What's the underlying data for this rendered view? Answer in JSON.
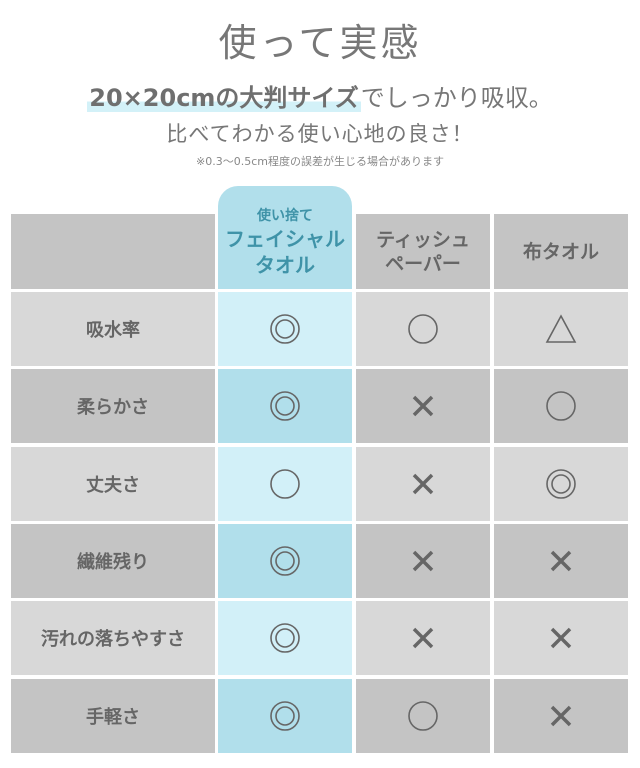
{
  "heading": {
    "title": "使って実感",
    "subtitle_highlight": "20×20cmの大判サイズ",
    "subtitle_rest": "でしっかり吸収。",
    "tagline": "比べてわかる使い心地の良さ！",
    "note": "※0.3〜0.5cm程度の誤差が生じる場合があります"
  },
  "colors": {
    "accent_text": "#3f93a8",
    "blue_light": "#d2f0f8",
    "blue_dark": "#b1dfeb",
    "gray_light": "#d8d8d8",
    "gray_dark": "#c4c4c4"
  },
  "table": {
    "columns": [
      {
        "label_small": "使い捨て",
        "label": "フェイシャル",
        "label2": "タオル"
      },
      {
        "label": "ティッシュ",
        "label2": "ペーパー"
      },
      {
        "label": "布タオル"
      }
    ],
    "rows": [
      {
        "feature": "吸水率",
        "values": [
          "◎",
          "○",
          "△"
        ]
      },
      {
        "feature": "柔らかさ",
        "values": [
          "◎",
          "×",
          "○"
        ]
      },
      {
        "feature": "丈夫さ",
        "values": [
          "○",
          "×",
          "◎"
        ]
      },
      {
        "feature": "繊維残り",
        "values": [
          "◎",
          "×",
          "×"
        ]
      },
      {
        "feature": "汚れの落ちやすさ",
        "values": [
          "◎",
          "×",
          "×"
        ]
      },
      {
        "feature": "手軽さ",
        "values": [
          "◎",
          "○",
          "×"
        ]
      }
    ]
  }
}
